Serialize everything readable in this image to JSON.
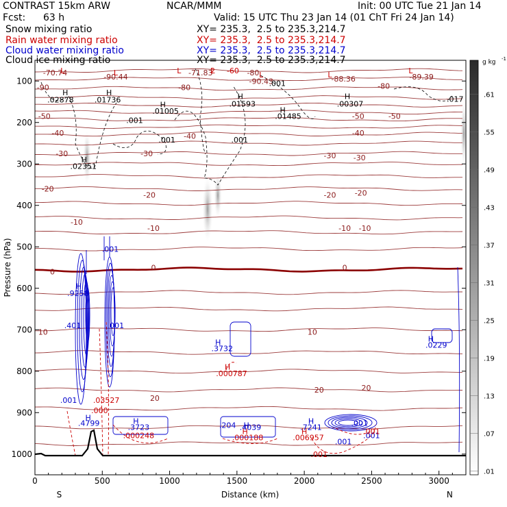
{
  "header": {
    "model": "CONTRAST 15km ARW",
    "org": "NCAR/MMM",
    "init": "Init: 00 UTC Tue 21 Jan 14",
    "fcst_label": "Fcst:",
    "fcst_value": "63 h",
    "valid": "Valid: 15 UTC Thu 23 Jan 14 (01 ChT Fri 24 Jan 14)"
  },
  "fields": [
    {
      "name": "Snow mixing ratio",
      "xy": "XY= 235.3,  2.5 to 235.3,214.7",
      "color": "#000000"
    },
    {
      "name": "Rain water mixing ratio",
      "xy": "XY= 235.3,  2.5 to 235.3,214.7",
      "color": "#cc0000"
    },
    {
      "name": "Cloud water mixing ratio",
      "xy": "XY= 235.3,  2.5 to 235.3,214.7",
      "color": "#0000cc"
    },
    {
      "name": "Cloud ice mixing ratio",
      "xy": "XY= 235.3,  2.5 to 235.3,214.7",
      "color": "#000000"
    }
  ],
  "chart_data": {
    "type": "contour cross-section",
    "xlabel": "Distance (km)",
    "ylabel": "Pressure (hPa)",
    "xlim": [
      0,
      3200
    ],
    "ylim": [
      1050,
      50
    ],
    "x_ticks": [
      0,
      500,
      1000,
      1500,
      2000,
      2500,
      3000
    ],
    "y_ticks": [
      100,
      200,
      300,
      400,
      500,
      600,
      700,
      800,
      900,
      1000
    ],
    "x_end_labels": {
      "left": "S",
      "right": "N"
    },
    "colorbar": {
      "unit": "g kg",
      "unit_exp": "-1",
      "ticks": [
        ".61",
        ".55",
        ".49",
        ".43",
        ".37",
        ".31",
        ".25",
        ".19",
        ".13",
        ".07",
        ".01"
      ],
      "ticks_value": [
        0.61,
        0.55,
        0.49,
        0.43,
        0.37,
        0.31,
        0.25,
        0.19,
        0.13,
        0.07,
        0.01
      ]
    },
    "temperature_contour_labels": [
      {
        "text": "-70.74",
        "x": 150,
        "p": 80
      },
      {
        "text": "-71.83",
        "x": 1230,
        "p": 80
      },
      {
        "text": "-80",
        "x": 1620,
        "p": 80
      },
      {
        "text": "-90.44",
        "x": 600,
        "p": 90
      },
      {
        "text": "-90.43",
        "x": 1680,
        "p": 100
      },
      {
        "text": "-88.36",
        "x": 2290,
        "p": 95
      },
      {
        "text": "-89.39",
        "x": 2870,
        "p": 90
      },
      {
        "text": "-90",
        "x": 60,
        "p": 115
      },
      {
        "text": "-80",
        "x": 1110,
        "p": 115
      },
      {
        "text": "-80",
        "x": 2590,
        "p": 112
      },
      {
        "text": "-50",
        "x": 70,
        "p": 185
      },
      {
        "text": "-50",
        "x": 2400,
        "p": 185
      },
      {
        "text": "-50",
        "x": 2670,
        "p": 185
      },
      {
        "text": "-40",
        "x": 170,
        "p": 225
      },
      {
        "text": "-40",
        "x": 1150,
        "p": 233
      },
      {
        "text": "-40",
        "x": 2400,
        "p": 225
      },
      {
        "text": "-30",
        "x": 200,
        "p": 275
      },
      {
        "text": "-30",
        "x": 830,
        "p": 275
      },
      {
        "text": "-30",
        "x": 2190,
        "p": 280
      },
      {
        "text": "-30",
        "x": 2410,
        "p": 285
      },
      {
        "text": "-20",
        "x": 95,
        "p": 360
      },
      {
        "text": "-20",
        "x": 850,
        "p": 375
      },
      {
        "text": "-20",
        "x": 2190,
        "p": 375
      },
      {
        "text": "-20",
        "x": 2420,
        "p": 370
      },
      {
        "text": "-10",
        "x": 310,
        "p": 440
      },
      {
        "text": "-10",
        "x": 880,
        "p": 455
      },
      {
        "text": "-10",
        "x": 2300,
        "p": 455
      },
      {
        "text": "-10",
        "x": 2450,
        "p": 455
      },
      {
        "text": "0",
        "x": 130,
        "p": 560
      },
      {
        "text": "0",
        "x": 880,
        "p": 550
      },
      {
        "text": "0",
        "x": 2300,
        "p": 550
      },
      {
        "text": "10",
        "x": 60,
        "p": 705
      },
      {
        "text": "10",
        "x": 2060,
        "p": 705
      },
      {
        "text": "20",
        "x": 890,
        "p": 865
      },
      {
        "text": "20",
        "x": 2110,
        "p": 845
      },
      {
        "text": "20",
        "x": 2460,
        "p": 840
      }
    ],
    "extrema_labels": [
      {
        "symbol": "L",
        "x": 205,
        "p": 75,
        "color": "#cc0000"
      },
      {
        "symbol": "L",
        "x": 600,
        "p": 80,
        "color": "#cc0000"
      },
      {
        "symbol": "L",
        "x": 1070,
        "p": 75,
        "color": "#cc0000"
      },
      {
        "symbol": "L",
        "x": 1320,
        "p": 75,
        "color": "#cc0000"
      },
      {
        "symbol": "L",
        "x": 1680,
        "p": 85,
        "color": "#cc0000"
      },
      {
        "symbol": "L",
        "x": 2190,
        "p": 85,
        "color": "#cc0000"
      },
      {
        "symbol": "L",
        "x": 2790,
        "p": 75,
        "color": "#cc0000"
      },
      {
        "symbol": "2",
        "x": 1320,
        "p": 75,
        "color": "#cc0000"
      },
      {
        "symbol": "-60",
        "x": 1470,
        "p": 75,
        "color": "#cc0000"
      }
    ],
    "snow_ice_labels": [
      {
        "text": "H",
        "x": 225,
        "p": 128
      },
      {
        "text": ".02878",
        "x": 190,
        "p": 145
      },
      {
        "text": "H",
        "x": 550,
        "p": 128
      },
      {
        "text": ".01736",
        "x": 540,
        "p": 145
      },
      {
        "text": "H",
        "x": 1525,
        "p": 137
      },
      {
        "text": ".01593",
        "x": 1540,
        "p": 155
      },
      {
        "text": "H",
        "x": 2320,
        "p": 137
      },
      {
        "text": ".00307",
        "x": 2340,
        "p": 155
      },
      {
        "text": ".017",
        "x": 3120,
        "p": 143
      },
      {
        "text": "H",
        "x": 950,
        "p": 157
      },
      {
        "text": ".01005",
        "x": 970,
        "p": 172
      },
      {
        "text": "H",
        "x": 1840,
        "p": 170
      },
      {
        "text": ".01485",
        "x": 1880,
        "p": 185
      },
      {
        "text": ".001",
        "x": 1800,
        "p": 105
      },
      {
        "text": ".001",
        "x": 740,
        "p": 195
      },
      {
        "text": ".001",
        "x": 980,
        "p": 242
      },
      {
        "text": ".001",
        "x": 1520,
        "p": 242
      },
      {
        "text": "H",
        "x": 365,
        "p": 290
      },
      {
        "text": ".02351",
        "x": 360,
        "p": 305
      }
    ],
    "cloud_water_labels": [
      {
        "text": ".001",
        "x": 560,
        "p": 505
      },
      {
        "text": "H",
        "x": 325,
        "p": 595
      },
      {
        "text": ".9258",
        "x": 320,
        "p": 612
      },
      {
        "text": ".401",
        "x": 280,
        "p": 690
      },
      {
        "text": ".001",
        "x": 600,
        "p": 690
      },
      {
        "text": "H",
        "x": 1360,
        "p": 730
      },
      {
        "text": ".3732",
        "x": 1390,
        "p": 745
      },
      {
        "text": "H",
        "x": 2940,
        "p": 722
      },
      {
        "text": ".0229",
        "x": 2980,
        "p": 737
      },
      {
        "text": ".001",
        "x": 250,
        "p": 870
      },
      {
        "text": "H",
        "x": 395,
        "p": 912
      },
      {
        "text": ".4799",
        "x": 400,
        "p": 925
      },
      {
        "text": "H",
        "x": 750,
        "p": 920
      },
      {
        "text": ".3723",
        "x": 770,
        "p": 935
      },
      {
        "text": ".204",
        "x": 1430,
        "p": 930
      },
      {
        "text": "H",
        "x": 1570,
        "p": 930
      },
      {
        "text": ".4039",
        "x": 1600,
        "p": 935
      },
      {
        "text": "H",
        "x": 2050,
        "p": 920
      },
      {
        "text": ".7241",
        "x": 2050,
        "p": 935
      },
      {
        "text": ".001",
        "x": 2410,
        "p": 925
      },
      {
        "text": ".001",
        "x": 2500,
        "p": 955
      },
      {
        "text": ".001",
        "x": 2290,
        "p": 970
      }
    ],
    "rain_labels": [
      {
        "text": "H",
        "x": 1430,
        "p": 790
      },
      {
        "text": ".000787",
        "x": 1460,
        "p": 805
      },
      {
        "text": ".03527",
        "x": 530,
        "p": 870
      },
      {
        "text": ".000",
        "x": 480,
        "p": 895
      },
      {
        "text": ".000248",
        "x": 770,
        "p": 955
      },
      {
        "text": "H",
        "x": 1560,
        "p": 945
      },
      {
        "text": ".000188",
        "x": 1580,
        "p": 960
      },
      {
        "text": "H",
        "x": 2000,
        "p": 945
      },
      {
        "text": ".006957",
        "x": 2030,
        "p": 960
      },
      {
        "text": ".001",
        "x": 2110,
        "p": 1000
      },
      {
        "text": ".001",
        "x": 2500,
        "p": 945
      }
    ]
  }
}
